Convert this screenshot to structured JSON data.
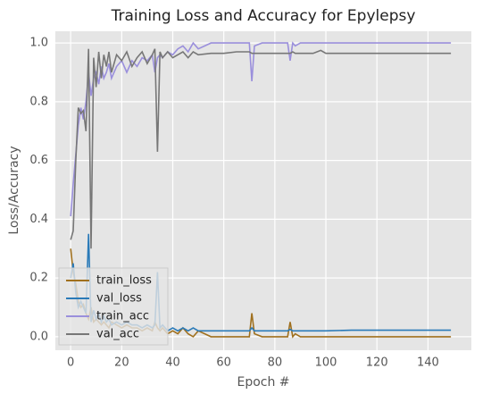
{
  "chart_data": {
    "type": "line",
    "title": "Training Loss and Accuracy for Epylepsy",
    "x_label": "Epoch #",
    "y_label": "Loss/Accuracy",
    "x": [
      0,
      1,
      2,
      3,
      4,
      5,
      6,
      7,
      8,
      9,
      10,
      11,
      12,
      13,
      14,
      15,
      16,
      18,
      20,
      22,
      24,
      26,
      28,
      30,
      32,
      33,
      34,
      35,
      36,
      38,
      40,
      42,
      44,
      46,
      48,
      50,
      55,
      60,
      65,
      70,
      71,
      72,
      75,
      80,
      85,
      86,
      87,
      88,
      90,
      95,
      98,
      100,
      110,
      120,
      130,
      140,
      149
    ],
    "series": [
      {
        "name": "train_loss",
        "color": "#a0701e",
        "values": [
          0.3,
          0.22,
          0.18,
          0.12,
          0.1,
          0.11,
          0.08,
          0.06,
          0.1,
          0.05,
          0.06,
          0.05,
          0.04,
          0.05,
          0.04,
          0.03,
          0.05,
          0.04,
          0.03,
          0.04,
          0.03,
          0.03,
          0.02,
          0.03,
          0.02,
          0.05,
          0.03,
          0.02,
          0.03,
          0.01,
          0.02,
          0.01,
          0.03,
          0.01,
          0.0,
          0.02,
          0.0,
          0.0,
          0.0,
          0.0,
          0.08,
          0.01,
          0.0,
          0.0,
          0.0,
          0.05,
          0.0,
          0.01,
          0.0,
          0.0,
          0.0,
          0.0,
          0.0,
          0.0,
          0.0,
          0.0,
          0.0
        ]
      },
      {
        "name": "val_loss",
        "color": "#2a7ab8",
        "values": [
          0.2,
          0.25,
          0.15,
          0.1,
          0.12,
          0.1,
          0.08,
          0.35,
          0.05,
          0.09,
          0.06,
          0.08,
          0.05,
          0.07,
          0.05,
          0.06,
          0.04,
          0.05,
          0.04,
          0.05,
          0.04,
          0.04,
          0.03,
          0.04,
          0.03,
          0.04,
          0.22,
          0.03,
          0.04,
          0.02,
          0.03,
          0.02,
          0.03,
          0.02,
          0.03,
          0.02,
          0.02,
          0.02,
          0.02,
          0.02,
          0.03,
          0.02,
          0.02,
          0.02,
          0.02,
          0.025,
          0.02,
          0.02,
          0.02,
          0.02,
          0.02,
          0.02,
          0.022,
          0.022,
          0.022,
          0.022,
          0.022
        ]
      },
      {
        "name": "train_acc",
        "color": "#9a8fdc",
        "values": [
          0.41,
          0.52,
          0.62,
          0.72,
          0.78,
          0.74,
          0.8,
          0.9,
          0.82,
          0.88,
          0.9,
          0.86,
          0.92,
          0.88,
          0.9,
          0.93,
          0.88,
          0.92,
          0.94,
          0.9,
          0.94,
          0.92,
          0.95,
          0.94,
          0.96,
          0.9,
          0.95,
          0.96,
          0.95,
          0.97,
          0.96,
          0.98,
          0.99,
          0.97,
          1.0,
          0.98,
          1.0,
          1.0,
          1.0,
          1.0,
          0.87,
          0.99,
          1.0,
          1.0,
          1.0,
          0.94,
          1.0,
          0.99,
          1.0,
          1.0,
          1.0,
          1.0,
          1.0,
          1.0,
          1.0,
          1.0,
          1.0
        ]
      },
      {
        "name": "val_acc",
        "color": "#777777",
        "values": [
          0.33,
          0.36,
          0.6,
          0.78,
          0.76,
          0.77,
          0.7,
          0.98,
          0.3,
          0.95,
          0.85,
          0.97,
          0.88,
          0.96,
          0.92,
          0.97,
          0.9,
          0.96,
          0.94,
          0.97,
          0.92,
          0.95,
          0.97,
          0.93,
          0.96,
          0.98,
          0.63,
          0.97,
          0.95,
          0.97,
          0.95,
          0.96,
          0.97,
          0.95,
          0.97,
          0.96,
          0.965,
          0.965,
          0.97,
          0.97,
          0.965,
          0.965,
          0.965,
          0.965,
          0.965,
          0.965,
          0.97,
          0.965,
          0.965,
          0.965,
          0.975,
          0.965,
          0.965,
          0.965,
          0.965,
          0.965,
          0.965
        ]
      }
    ],
    "xlim": [
      -6,
      157
    ],
    "xticks": [
      0,
      20,
      40,
      60,
      80,
      100,
      120,
      140
    ],
    "ylim": [
      -0.046,
      1.04
    ],
    "yticks": [
      {
        "value": 0,
        "label": "0.0"
      },
      0.2,
      0.4,
      0.6,
      0.8,
      {
        "value": 1,
        "label": "1.0"
      }
    ],
    "grid": true,
    "legend": "lower left"
  }
}
